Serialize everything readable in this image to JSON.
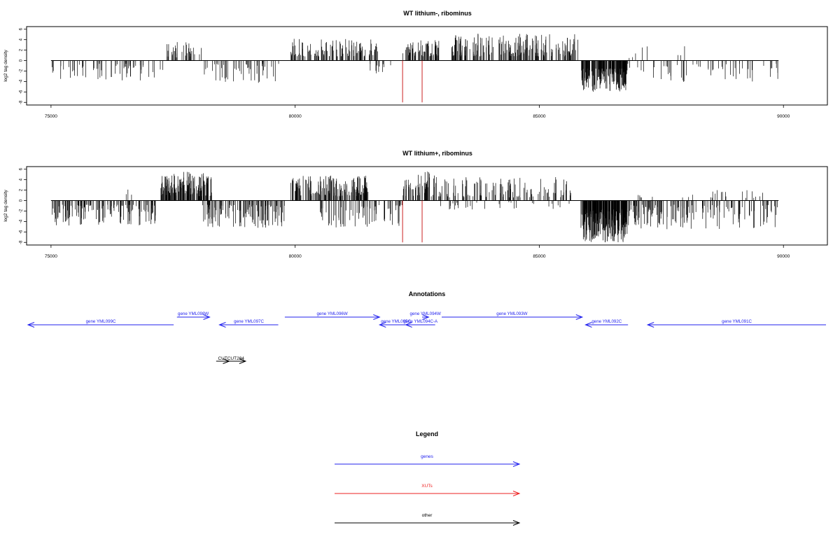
{
  "chart_data": [
    {
      "type": "bar",
      "title": "WT lithium-, ribominus",
      "xlabel": "",
      "ylabel": "log2 tag density",
      "xlim": [
        74500,
        90900
      ],
      "ylim": [
        -8.5,
        6.5
      ],
      "xticks": [
        75000,
        80000,
        85000,
        90000
      ],
      "yticks": [
        -8,
        -6,
        -4,
        -2,
        0,
        2,
        4,
        6
      ],
      "bar_color": "#000000",
      "marker_color": "#cc2222",
      "markers": [
        82200,
        82600
      ],
      "density": {
        "segments": [
          {
            "x": [
              75000,
              77300
            ],
            "sign": -1,
            "min": 0.6,
            "max": 3.8,
            "count": 60
          },
          {
            "x": [
              77300,
              78100
            ],
            "sign": 1,
            "min": 0.6,
            "max": 3.6,
            "count": 35
          },
          {
            "x": [
              78100,
              79700
            ],
            "sign": -1,
            "min": 0.6,
            "max": 4.3,
            "count": 45
          },
          {
            "x": [
              79900,
              81700
            ],
            "sign": 1,
            "min": 0.8,
            "max": 4.2,
            "count": 110
          },
          {
            "x": [
              81500,
              82000
            ],
            "sign": -1,
            "min": 0.5,
            "max": 2.5,
            "count": 12
          },
          {
            "x": [
              82200,
              82950
            ],
            "sign": 1,
            "min": 0.8,
            "max": 3.9,
            "count": 70
          },
          {
            "x": [
              83200,
              85800
            ],
            "sign": 1,
            "min": 0.8,
            "max": 5.3,
            "count": 200
          },
          {
            "x": [
              85850,
              86800
            ],
            "sign": -1,
            "min": 1.5,
            "max": 6.0,
            "count": 170
          },
          {
            "x": [
              86800,
              89900
            ],
            "sign": -1,
            "min": 0.6,
            "max": 4.5,
            "count": 55
          },
          {
            "x": [
              86700,
              88000
            ],
            "sign": 1,
            "min": 0.5,
            "max": 3.2,
            "count": 8
          }
        ]
      }
    },
    {
      "type": "bar",
      "title": "WT lithium+, ribominus",
      "xlabel": "",
      "ylabel": "log2 tag density",
      "xlim": [
        74500,
        90900
      ],
      "ylim": [
        -8.5,
        6.5
      ],
      "xticks": [
        75000,
        80000,
        85000,
        90000
      ],
      "yticks": [
        -8,
        -6,
        -4,
        -2,
        0,
        2,
        4,
        6
      ],
      "bar_color": "#000000",
      "marker_color": "#cc2222",
      "markers": [
        82200,
        82600
      ],
      "density": {
        "segments": [
          {
            "x": [
              75000,
              77200
            ],
            "sign": -1,
            "min": 0.8,
            "max": 4.8,
            "count": 130
          },
          {
            "x": [
              76500,
              76700
            ],
            "sign": 1,
            "min": 1.0,
            "max": 2.2,
            "count": 3
          },
          {
            "x": [
              77250,
              78300
            ],
            "sign": 1,
            "min": 0.8,
            "max": 5.5,
            "count": 150
          },
          {
            "x": [
              78100,
              79800
            ],
            "sign": -1,
            "min": 0.8,
            "max": 5.2,
            "count": 110
          },
          {
            "x": [
              79900,
              81500
            ],
            "sign": 1,
            "min": 0.8,
            "max": 4.8,
            "count": 160
          },
          {
            "x": [
              80500,
              82200
            ],
            "sign": -1,
            "min": 0.8,
            "max": 5.2,
            "count": 70
          },
          {
            "x": [
              82200,
              83000
            ],
            "sign": 1,
            "min": 0.8,
            "max": 5.6,
            "count": 60
          },
          {
            "x": [
              83000,
              85700
            ],
            "sign": 1,
            "min": 0.6,
            "max": 4.5,
            "count": 110
          },
          {
            "x": [
              82800,
              85700
            ],
            "sign": -1,
            "min": 0.3,
            "max": 1.8,
            "count": 30
          },
          {
            "x": [
              85850,
              86800
            ],
            "sign": -1,
            "min": 1.5,
            "max": 8.0,
            "count": 230
          },
          {
            "x": [
              86800,
              89900
            ],
            "sign": -1,
            "min": 0.8,
            "max": 5.5,
            "count": 140
          },
          {
            "x": [
              87000,
              89600
            ],
            "sign": 1,
            "min": 0.5,
            "max": 2.1,
            "count": 25
          }
        ]
      }
    }
  ],
  "annotations": {
    "title": "Annotations",
    "genes_color": "#2222ee",
    "other_color": "#000000",
    "features": [
      {
        "label": "gene YML099C",
        "start": 74500,
        "end": 79000,
        "strand": "-",
        "row": 0
      },
      {
        "label": "gene YML098W",
        "start": 79100,
        "end": 80100,
        "strand": "+",
        "row": 1
      },
      {
        "label": "gene YML097C",
        "start": 80400,
        "end": 82200,
        "strand": "-",
        "row": 0
      },
      {
        "label": "gene YML096W",
        "start": 82400,
        "end": 85300,
        "strand": "+",
        "row": 1
      },
      {
        "label": "gene YML095C",
        "start": 85300,
        "end": 86300,
        "strand": "-",
        "row": 0
      },
      {
        "label": "gene YML094C-A",
        "start": 86100,
        "end": 87000,
        "strand": "-",
        "row": 0
      },
      {
        "label": "gene YML094W",
        "start": 86600,
        "end": 86800,
        "strand": "+",
        "row": 1
      },
      {
        "label": "gene YML093W",
        "start": 87200,
        "end": 91500,
        "strand": "+",
        "row": 1
      },
      {
        "label": "gene YML092C",
        "start": 91600,
        "end": 92900,
        "strand": "-",
        "row": 0
      },
      {
        "label": "gene YML091C",
        "start": 93500,
        "end": 99000,
        "strand": "-",
        "row": 0
      },
      {
        "label": "CUT",
        "start": 80300,
        "end": 80700,
        "strand": "+",
        "row": 2,
        "kind": "other"
      },
      {
        "label": "CUT284",
        "start": 80600,
        "end": 81200,
        "strand": "+",
        "row": 2,
        "kind": "other"
      }
    ]
  },
  "legend": {
    "title": "Legend",
    "items": [
      {
        "label": "genes",
        "color": "#2222ee"
      },
      {
        "label": "XUTs",
        "color": "#ee2222"
      },
      {
        "label": "other",
        "color": "#000000"
      }
    ]
  }
}
